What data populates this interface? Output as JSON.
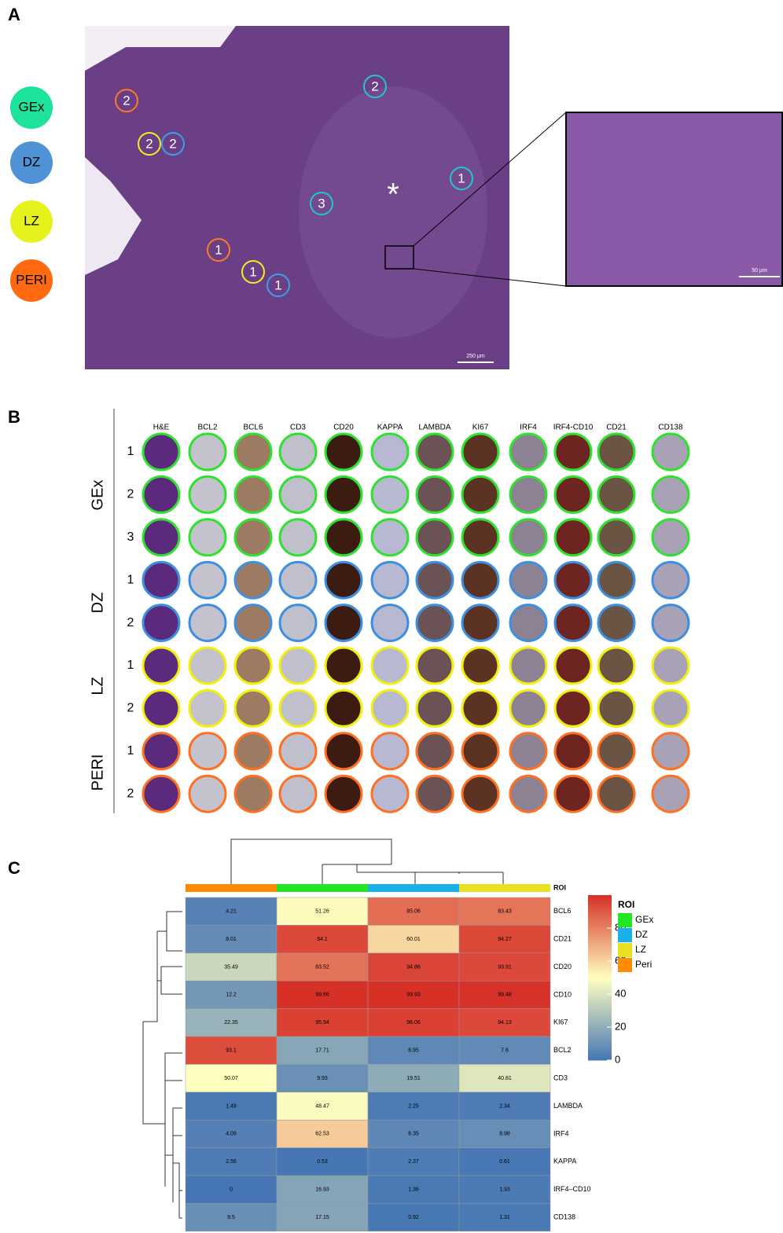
{
  "panel_a": {
    "label": "A",
    "legend": [
      {
        "name": "GEx",
        "color": "#1ee39c"
      },
      {
        "name": "DZ",
        "color": "#4f93d6"
      },
      {
        "name": "LZ",
        "color": "#e6f21c"
      },
      {
        "name": "PERI",
        "color": "#ff6a10"
      }
    ],
    "rois": [
      {
        "label": "2",
        "color": "#ff7a20"
      },
      {
        "label": "2",
        "color": "#f0f020"
      },
      {
        "label": "2",
        "color": "#3aa0e8"
      },
      {
        "label": "2",
        "color": "#20c8c8"
      },
      {
        "label": "1",
        "color": "#20c8c8"
      },
      {
        "label": "3",
        "color": "#20c8c8"
      },
      {
        "label": "1",
        "color": "#ff7a20"
      },
      {
        "label": "1",
        "color": "#f0f020"
      },
      {
        "label": "1",
        "color": "#3aa0e8"
      }
    ],
    "marker": "*",
    "scale_main": "250 µm",
    "scale_inset": "50 µm"
  },
  "panel_b": {
    "label": "B",
    "columns": [
      {
        "name": "H&E",
        "fill": "#5b2a7c"
      },
      {
        "name": "BCL2",
        "fill": "#c4c2cc"
      },
      {
        "name": "BCL6",
        "fill": "#9c7b62"
      },
      {
        "name": "CD3",
        "fill": "#c0bfcc"
      },
      {
        "name": "CD20",
        "fill": "#3c1b10"
      },
      {
        "name": "KAPPA",
        "fill": "#b8b8d2"
      },
      {
        "name": "LAMBDA",
        "fill": "#6b5254"
      },
      {
        "name": "KI67",
        "fill": "#5c3222"
      },
      {
        "name": "IRF4",
        "fill": "#8c8294"
      },
      {
        "name": "IRF4-CD10",
        "fill": "#6e2420"
      },
      {
        "name": "CD21",
        "fill": "#6c5444"
      },
      {
        "name": "CD138",
        "fill": "#a9a2b6"
      }
    ],
    "groups": [
      {
        "name": "GEx",
        "color": "#2fe22f",
        "rows": [
          1,
          2,
          3
        ]
      },
      {
        "name": "DZ",
        "color": "#3d8fe0",
        "rows": [
          1,
          2
        ]
      },
      {
        "name": "LZ",
        "color": "#f0f010",
        "rows": [
          1,
          2
        ]
      },
      {
        "name": "PERI",
        "color": "#ff7020",
        "rows": [
          1,
          2
        ]
      }
    ]
  },
  "panel_c": {
    "label": "C"
  },
  "chart_data": {
    "type": "heatmap",
    "header": "ROI",
    "columns": [
      {
        "name": "Peri",
        "color": "#ff8c00"
      },
      {
        "name": "GEx",
        "color": "#22e622"
      },
      {
        "name": "DZ",
        "color": "#1ab0ea"
      },
      {
        "name": "LZ",
        "color": "#e8e020"
      }
    ],
    "rows": [
      "BCL6",
      "CD21",
      "CD20",
      "CD10",
      "KI67",
      "BCL2",
      "CD3",
      "LAMBDA",
      "IRF4",
      "KAPPA",
      "IRF4–CD10",
      "CD138"
    ],
    "values": [
      [
        4.21,
        51.26,
        85.06,
        83.43
      ],
      [
        8.01,
        94.1,
        60.01,
        94.27
      ],
      [
        35.49,
        83.52,
        94.86,
        93.91
      ],
      [
        12.2,
        99.86,
        99.93,
        99.48
      ],
      [
        22.35,
        95.94,
        96.06,
        94.13
      ],
      [
        93.1,
        17.71,
        6.95,
        7.6
      ],
      [
        50.07,
        9.93,
        19.51,
        40.81
      ],
      [
        1.49,
        48.47,
        2.25,
        2.34
      ],
      [
        4.09,
        62.53,
        6.35,
        8.98
      ],
      [
        2.56,
        0.53,
        2.37,
        0.61
      ],
      [
        0,
        16.93,
        1.36,
        1.93
      ],
      [
        9.5,
        17.15,
        0.92,
        1.31
      ]
    ],
    "colors": [
      "#4575b4",
      "#ffffbf",
      "#d73027"
    ],
    "clim": [
      0,
      100
    ],
    "cticks": [
      0,
      20,
      40,
      60,
      80
    ],
    "legend_title": "ROI"
  }
}
